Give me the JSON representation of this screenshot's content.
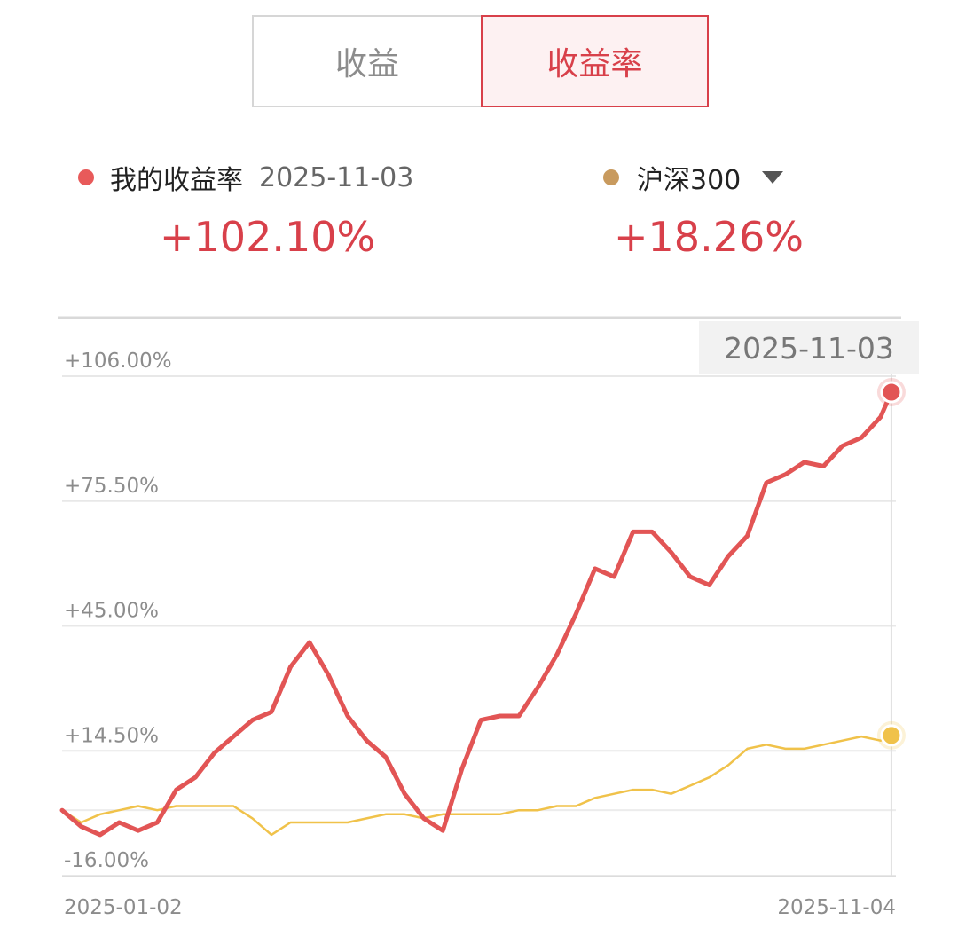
{
  "tabs": {
    "left_label": "收益",
    "right_label": "收益率",
    "active": "收益率"
  },
  "legend": {
    "mine": {
      "name": "我的收益率",
      "date": "2025-11-03",
      "value": "+102.10%",
      "color": "#e85a5a"
    },
    "benchmark": {
      "name": "沪深300",
      "value": "+18.26%",
      "color": "#c89a5e"
    }
  },
  "chart_data": {
    "type": "line",
    "x_start": "2025-01-02",
    "x_end": "2025-11-04",
    "x_tick_labels": [
      "2025-01-02",
      "2025-11-04"
    ],
    "y_tick_labels": [
      "+106.00%",
      "+75.50%",
      "+45.00%",
      "+14.50%",
      "-16.00%"
    ],
    "y_ticks": [
      106.0,
      75.5,
      45.0,
      14.5,
      -16.0
    ],
    "ylim": [
      -16.0,
      120.0
    ],
    "highlight_date": "2025-11-03",
    "grid": true,
    "series": [
      {
        "name": "我的收益率",
        "color": "#e25555",
        "x": [
          "2025-01-02",
          "2025-01-09",
          "2025-01-16",
          "2025-01-23",
          "2025-01-30",
          "2025-02-06",
          "2025-02-13",
          "2025-02-20",
          "2025-02-27",
          "2025-03-06",
          "2025-03-13",
          "2025-03-20",
          "2025-03-27",
          "2025-04-03",
          "2025-04-10",
          "2025-04-17",
          "2025-04-24",
          "2025-05-01",
          "2025-05-08",
          "2025-05-15",
          "2025-05-22",
          "2025-05-29",
          "2025-06-05",
          "2025-06-12",
          "2025-06-19",
          "2025-06-26",
          "2025-07-03",
          "2025-07-10",
          "2025-07-17",
          "2025-07-24",
          "2025-07-31",
          "2025-08-07",
          "2025-08-14",
          "2025-08-21",
          "2025-08-28",
          "2025-09-04",
          "2025-09-11",
          "2025-09-18",
          "2025-09-25",
          "2025-10-02",
          "2025-10-09",
          "2025-10-16",
          "2025-10-23",
          "2025-10-30",
          "2025-11-03"
        ],
        "values": [
          0,
          -4,
          -6,
          -3,
          -5,
          -3,
          5,
          8,
          14,
          18,
          22,
          24,
          35,
          41,
          33,
          23,
          17,
          13,
          4,
          -2,
          -5,
          10,
          22,
          23,
          23,
          30,
          38,
          48,
          59,
          57,
          68,
          68,
          63,
          57,
          55,
          62,
          67,
          80,
          82,
          85,
          84,
          89,
          91,
          96,
          102.1
        ]
      },
      {
        "name": "沪深300",
        "color": "#f0c24a",
        "x": [
          "2025-01-02",
          "2025-01-09",
          "2025-01-16",
          "2025-01-23",
          "2025-01-30",
          "2025-02-06",
          "2025-02-13",
          "2025-02-20",
          "2025-02-27",
          "2025-03-06",
          "2025-03-13",
          "2025-03-20",
          "2025-03-27",
          "2025-04-03",
          "2025-04-10",
          "2025-04-17",
          "2025-04-24",
          "2025-05-01",
          "2025-05-08",
          "2025-05-15",
          "2025-05-22",
          "2025-05-29",
          "2025-06-05",
          "2025-06-12",
          "2025-06-19",
          "2025-06-26",
          "2025-07-03",
          "2025-07-10",
          "2025-07-17",
          "2025-07-24",
          "2025-07-31",
          "2025-08-07",
          "2025-08-14",
          "2025-08-21",
          "2025-08-28",
          "2025-09-04",
          "2025-09-11",
          "2025-09-18",
          "2025-09-25",
          "2025-10-02",
          "2025-10-09",
          "2025-10-16",
          "2025-10-23",
          "2025-10-30",
          "2025-11-03"
        ],
        "values": [
          0,
          -3,
          -1,
          0,
          1,
          0,
          1,
          1,
          1,
          1,
          -2,
          -6,
          -3,
          -3,
          -3,
          -3,
          -2,
          -1,
          -1,
          -2,
          -1,
          -1,
          -1,
          -1,
          0,
          0,
          1,
          1,
          3,
          4,
          5,
          5,
          4,
          6,
          8,
          11,
          15,
          16,
          15,
          15,
          16,
          17,
          18,
          17,
          18.26
        ]
      }
    ]
  }
}
